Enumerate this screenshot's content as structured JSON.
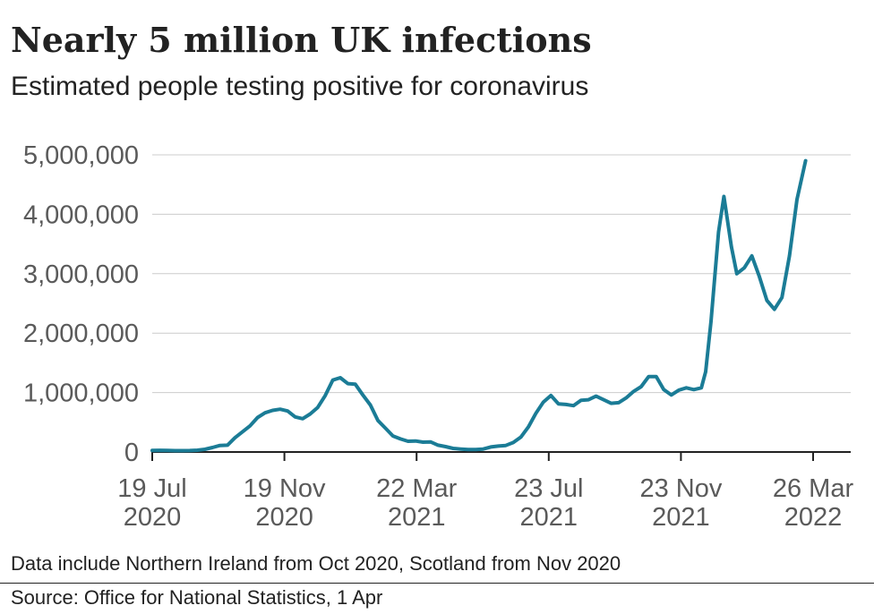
{
  "chart_data": {
    "type": "line",
    "title": "Nearly 5 million UK infections",
    "subtitle": "Estimated people testing positive for coronavirus",
    "note": "Data include Northern Ireland from Oct 2020, Scotland from Nov 2020",
    "source": "Source: Office for National Statistics, 1 Apr",
    "line_color": "#1b7c96",
    "grid": true,
    "ylim": [
      0,
      5000000
    ],
    "y_ticks": [
      {
        "value": 0,
        "label": "0"
      },
      {
        "value": 1000000,
        "label": "1,000,000"
      },
      {
        "value": 2000000,
        "label": "2,000,000"
      },
      {
        "value": 3000000,
        "label": "3,000,000"
      },
      {
        "value": 4000000,
        "label": "4,000,000"
      },
      {
        "value": 5000000,
        "label": "5,000,000"
      }
    ],
    "x_ticks": [
      {
        "date": "2020-07-19",
        "line1": "19 Jul",
        "line2": "2020"
      },
      {
        "date": "2020-11-19",
        "line1": "19 Nov",
        "line2": "2020"
      },
      {
        "date": "2021-03-22",
        "line1": "22 Mar",
        "line2": "2021"
      },
      {
        "date": "2021-07-23",
        "line1": "23 Jul",
        "line2": "2021"
      },
      {
        "date": "2021-11-23",
        "line1": "23 Nov",
        "line2": "2021"
      },
      {
        "date": "2022-03-26",
        "line1": "26 Mar",
        "line2": "2022"
      }
    ],
    "series": [
      {
        "points": [
          [
            "2020-07-19",
            25000
          ],
          [
            "2020-07-26",
            28000
          ],
          [
            "2020-08-02",
            25000
          ],
          [
            "2020-08-09",
            22000
          ],
          [
            "2020-08-16",
            22000
          ],
          [
            "2020-08-23",
            24000
          ],
          [
            "2020-08-30",
            30000
          ],
          [
            "2020-09-06",
            45000
          ],
          [
            "2020-09-13",
            75000
          ],
          [
            "2020-09-20",
            110000
          ],
          [
            "2020-09-27",
            115000
          ],
          [
            "2020-10-04",
            240000
          ],
          [
            "2020-10-11",
            340000
          ],
          [
            "2020-10-18",
            440000
          ],
          [
            "2020-10-25",
            580000
          ],
          [
            "2020-11-01",
            660000
          ],
          [
            "2020-11-08",
            700000
          ],
          [
            "2020-11-15",
            720000
          ],
          [
            "2020-11-22",
            690000
          ],
          [
            "2020-11-29",
            590000
          ],
          [
            "2020-12-06",
            560000
          ],
          [
            "2020-12-13",
            640000
          ],
          [
            "2020-12-20",
            750000
          ],
          [
            "2020-12-27",
            950000
          ],
          [
            "2021-01-03",
            1210000
          ],
          [
            "2021-01-10",
            1250000
          ],
          [
            "2021-01-17",
            1150000
          ],
          [
            "2021-01-24",
            1140000
          ],
          [
            "2021-01-31",
            960000
          ],
          [
            "2021-02-07",
            790000
          ],
          [
            "2021-02-14",
            530000
          ],
          [
            "2021-02-21",
            400000
          ],
          [
            "2021-02-28",
            270000
          ],
          [
            "2021-03-07",
            220000
          ],
          [
            "2021-03-14",
            180000
          ],
          [
            "2021-03-21",
            185000
          ],
          [
            "2021-03-28",
            165000
          ],
          [
            "2021-04-04",
            170000
          ],
          [
            "2021-04-11",
            115000
          ],
          [
            "2021-04-18",
            90000
          ],
          [
            "2021-04-25",
            60000
          ],
          [
            "2021-05-02",
            50000
          ],
          [
            "2021-05-09",
            40000
          ],
          [
            "2021-05-16",
            40000
          ],
          [
            "2021-05-23",
            50000
          ],
          [
            "2021-05-30",
            85000
          ],
          [
            "2021-06-06",
            100000
          ],
          [
            "2021-06-13",
            110000
          ],
          [
            "2021-06-20",
            160000
          ],
          [
            "2021-06-27",
            250000
          ],
          [
            "2021-07-04",
            420000
          ],
          [
            "2021-07-11",
            650000
          ],
          [
            "2021-07-18",
            840000
          ],
          [
            "2021-07-25",
            950000
          ],
          [
            "2021-08-01",
            810000
          ],
          [
            "2021-08-08",
            800000
          ],
          [
            "2021-08-15",
            780000
          ],
          [
            "2021-08-22",
            870000
          ],
          [
            "2021-08-29",
            880000
          ],
          [
            "2021-09-05",
            940000
          ],
          [
            "2021-09-12",
            880000
          ],
          [
            "2021-09-19",
            820000
          ],
          [
            "2021-09-26",
            830000
          ],
          [
            "2021-10-03",
            910000
          ],
          [
            "2021-10-10",
            1020000
          ],
          [
            "2021-10-17",
            1100000
          ],
          [
            "2021-10-24",
            1270000
          ],
          [
            "2021-10-31",
            1270000
          ],
          [
            "2021-11-07",
            1050000
          ],
          [
            "2021-11-14",
            960000
          ],
          [
            "2021-11-21",
            1040000
          ],
          [
            "2021-11-28",
            1080000
          ],
          [
            "2021-12-05",
            1050000
          ],
          [
            "2021-12-12",
            1080000
          ],
          [
            "2021-12-16",
            1350000
          ],
          [
            "2021-12-21",
            2200000
          ],
          [
            "2021-12-28",
            3700000
          ],
          [
            "2022-01-02",
            4300000
          ],
          [
            "2022-01-09",
            3450000
          ],
          [
            "2022-01-14",
            3000000
          ],
          [
            "2022-01-21",
            3100000
          ],
          [
            "2022-01-28",
            3300000
          ],
          [
            "2022-02-04",
            2950000
          ],
          [
            "2022-02-11",
            2550000
          ],
          [
            "2022-02-18",
            2400000
          ],
          [
            "2022-02-25",
            2600000
          ],
          [
            "2022-03-04",
            3300000
          ],
          [
            "2022-03-11",
            4250000
          ],
          [
            "2022-03-19",
            4900000
          ]
        ]
      }
    ]
  }
}
